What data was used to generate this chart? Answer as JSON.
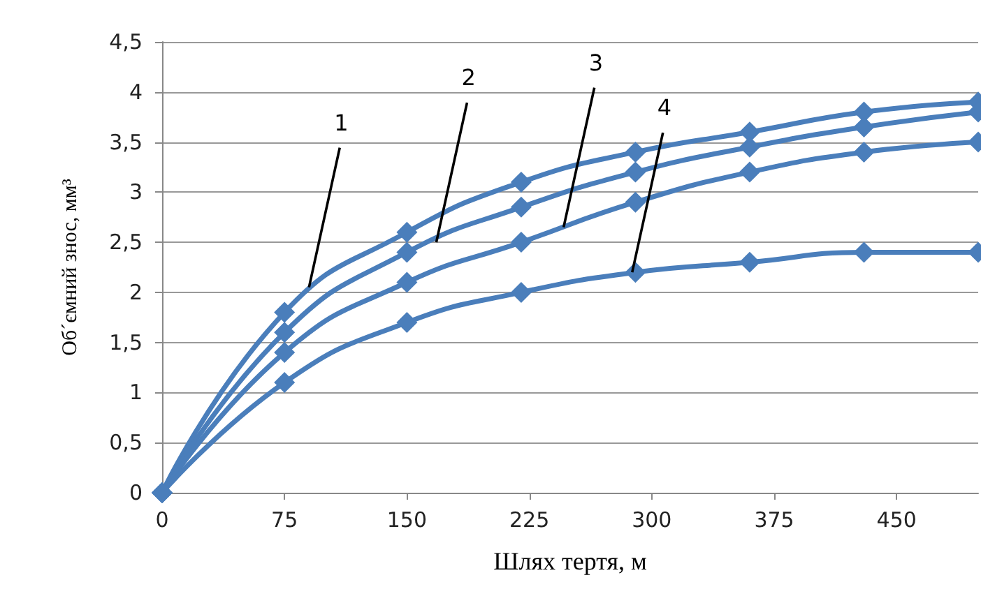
{
  "chart_data": {
    "type": "line",
    "xlabel": "Шлях тертя, м",
    "ylabel": "Об´ємний знос, мм³",
    "x": [
      0,
      75,
      150,
      220,
      290,
      360,
      430,
      500
    ],
    "series": [
      {
        "color": "#4a7ebb",
        "values": [
          0,
          1.8,
          2.6,
          3.1,
          3.4,
          3.6,
          3.8,
          3.9
        ]
      },
      {
        "color": "#4a7ebb",
        "values": [
          0,
          1.6,
          2.4,
          2.85,
          3.2,
          3.45,
          3.65,
          3.8
        ]
      },
      {
        "color": "#4a7ebb",
        "values": [
          0,
          1.4,
          2.1,
          2.5,
          2.9,
          3.2,
          3.4,
          3.5
        ]
      },
      {
        "color": "#4a7ebb",
        "values": [
          0,
          1.1,
          1.7,
          2.0,
          2.2,
          2.3,
          2.4,
          2.4
        ]
      }
    ],
    "xlim": [
      0,
      500
    ],
    "xticks": [
      0,
      75,
      150,
      225,
      300,
      375,
      450
    ],
    "ylim": [
      0,
      4.5
    ],
    "yticks": [
      0,
      {
        "value": 0.5,
        "label": "0,5"
      },
      1,
      {
        "value": 1.5,
        "label": "1,5"
      },
      2,
      {
        "value": 2.5,
        "label": "2,5"
      },
      3,
      {
        "value": 3.5,
        "label": "3,5"
      },
      4,
      {
        "value": 4.5,
        "label": "4,5"
      }
    ],
    "grid": "y",
    "marker": "diamond",
    "line_style": "solid",
    "annotations": [
      {
        "text": "1",
        "x": 90,
        "y": 2.05
      },
      {
        "text": "2",
        "x": 168,
        "y": 2.5
      },
      {
        "text": "3",
        "x": 246,
        "y": 2.65
      },
      {
        "text": "4",
        "x": 288,
        "y": 2.2
      }
    ]
  }
}
